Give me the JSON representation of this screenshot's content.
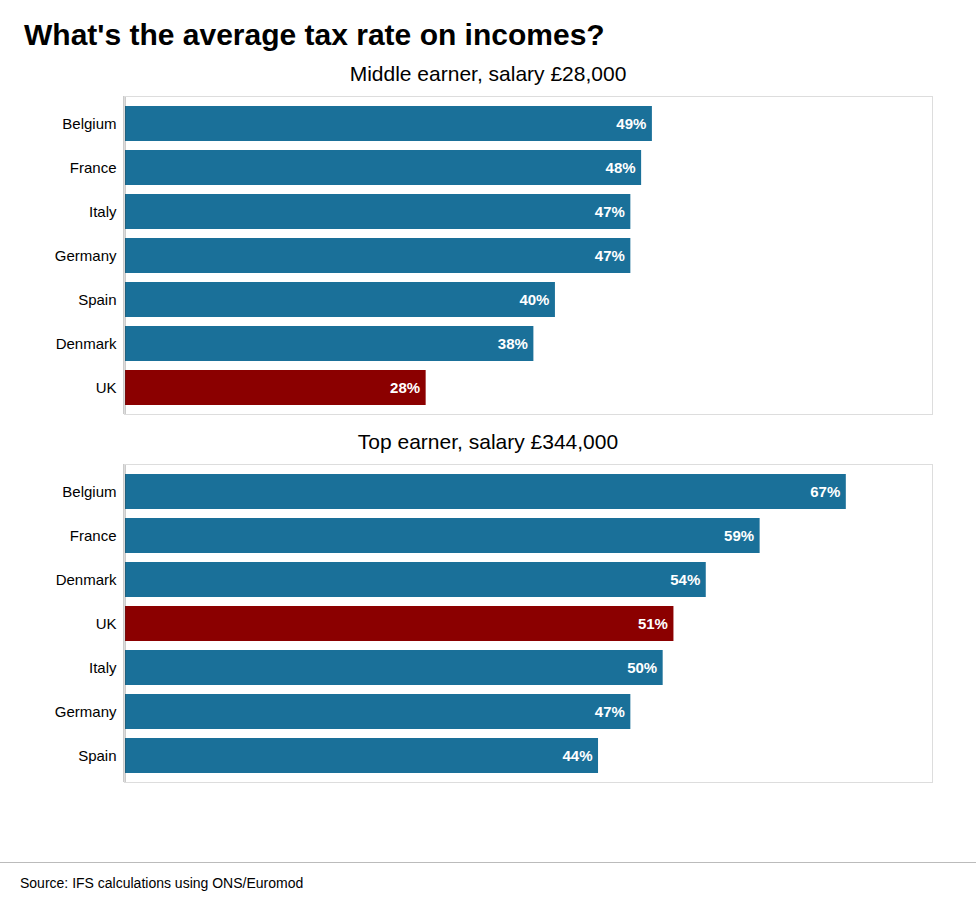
{
  "chart_data": [
    {
      "type": "bar",
      "orientation": "horizontal",
      "title": "What's the average tax rate on incomes?",
      "subtitle": "Middle earner, salary £28,000",
      "categories": [
        "Belgium",
        "France",
        "Italy",
        "Germany",
        "Spain",
        "Denmark",
        "UK"
      ],
      "values": [
        49,
        48,
        47,
        47,
        40,
        38,
        28
      ],
      "value_labels": [
        "49%",
        "48%",
        "47%",
        "47%",
        "40%",
        "38%",
        "28%"
      ],
      "colors": [
        "#1a7099",
        "#1a7099",
        "#1a7099",
        "#1a7099",
        "#1a7099",
        "#1a7099",
        "#8b0000"
      ],
      "xlim": [
        0,
        75
      ],
      "data_labels": true,
      "tick_labels": "y",
      "grid": false
    },
    {
      "type": "bar",
      "orientation": "horizontal",
      "subtitle": "Top earner, salary £344,000",
      "source": "Source: IFS calculations using ONS/Euromod",
      "categories": [
        "Belgium",
        "France",
        "Denmark",
        "UK",
        "Italy",
        "Germany",
        "Spain"
      ],
      "values": [
        67,
        59,
        54,
        51,
        50,
        47,
        44
      ],
      "value_labels": [
        "67%",
        "59%",
        "54%",
        "51%",
        "50%",
        "47%",
        "44%"
      ],
      "colors": [
        "#1a7099",
        "#1a7099",
        "#1a7099",
        "#8b0000",
        "#1a7099",
        "#1a7099",
        "#1a7099"
      ],
      "xlim": [
        0,
        75
      ],
      "data_labels": true,
      "tick_labels": "y",
      "grid": false
    }
  ]
}
